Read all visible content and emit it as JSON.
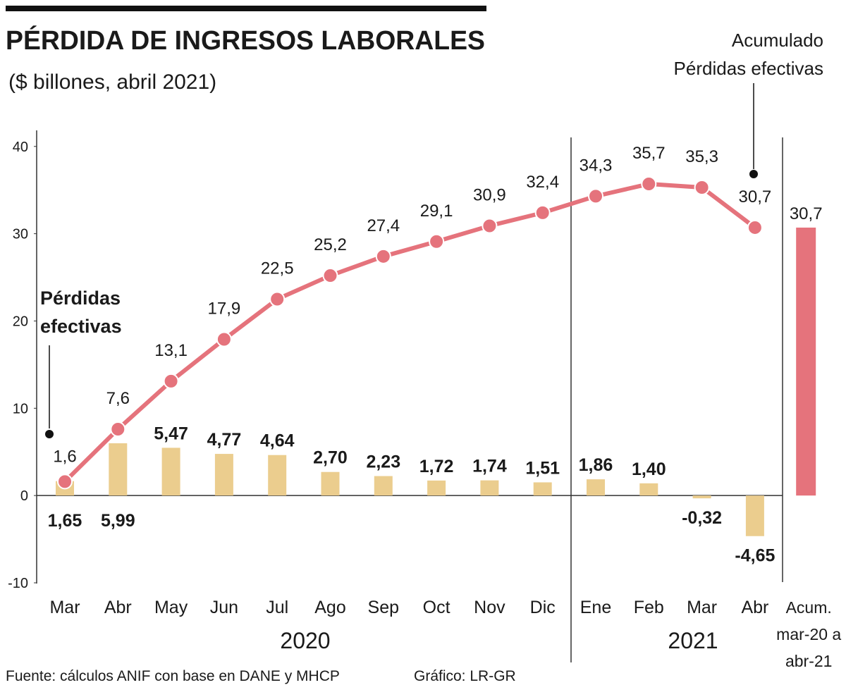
{
  "chart_data": {
    "type": "bar_line",
    "title": "PÉRDIDA DE INGRESOS LABORALES",
    "subtitle": "($ billones, abril 2021)",
    "categories": [
      "Mar",
      "Abr",
      "May",
      "Jun",
      "Jul",
      "Ago",
      "Sep",
      "Oct",
      "Nov",
      "Dic",
      "Ene",
      "Feb",
      "Mar",
      "Abr"
    ],
    "periods": [
      "2020",
      "2021"
    ],
    "series": [
      {
        "type": "bar",
        "color": "#ebcd8e",
        "values": [
          1.65,
          5.99,
          5.47,
          4.77,
          4.64,
          2.7,
          2.23,
          1.72,
          1.74,
          1.51,
          1.86,
          1.4,
          -0.32,
          -4.65
        ],
        "value_labels": [
          "1,65",
          "5,99",
          "5,47",
          "4,77",
          "4,64",
          "2,70",
          "2,23",
          "1,72",
          "1,74",
          "1,51",
          "1,86",
          "1,40",
          "-0,32",
          "-4,65"
        ]
      },
      {
        "type": "line",
        "color": "#e5737c",
        "values": [
          1.6,
          7.6,
          13.1,
          17.9,
          22.5,
          25.2,
          27.4,
          29.1,
          30.9,
          32.4,
          34.3,
          35.7,
          35.3,
          30.7
        ],
        "value_labels": [
          "1,6",
          "7,6",
          "13,1",
          "17,9",
          "22,5",
          "25,2",
          "27,4",
          "29,1",
          "30,9",
          "32,4",
          "34,3",
          "35,7",
          "35,3",
          "30,7"
        ]
      }
    ],
    "total": {
      "label": [
        "Acum.",
        "mar-20 a",
        "abr-21"
      ],
      "value": 30.7,
      "value_label": "30,7",
      "color": "#e5737c"
    },
    "annotations": [
      {
        "text": [
          "Pérdidas",
          "efectivas"
        ]
      },
      {
        "text": [
          "Acumulado",
          "Pérdidas efectivas"
        ]
      }
    ],
    "ylim": [
      -10,
      42
    ],
    "yticks": [
      -10,
      0,
      10,
      20,
      30,
      40
    ],
    "source": "Fuente: cálculos ANIF con base en DANE y MHCP",
    "credit": "Gráfico: LR-GR"
  }
}
